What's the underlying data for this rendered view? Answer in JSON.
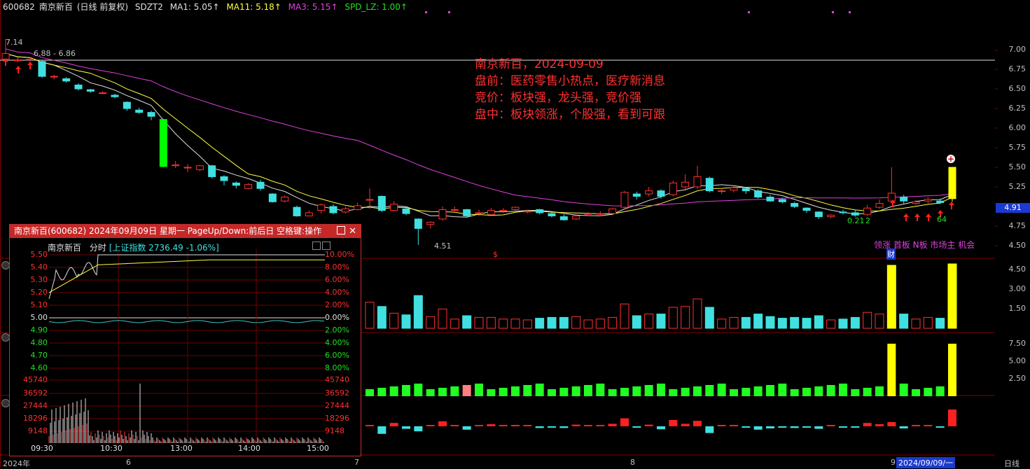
{
  "header": {
    "code": "600682",
    "name": "南京新百",
    "period": "(日线 前复权)",
    "indicator": "SDZT2",
    "ma1": "MA1: 5.05↑",
    "ma11": "MA11: 5.18↑",
    "ma3": "MA3: 5.15↑",
    "spd": "SPD_LZ: 1.00↑"
  },
  "annotation": {
    "line1": "南京新百，2024-09-09",
    "line2": "盘前：医药零售小热点，医疗新消息",
    "line3": "竞价：板块强，龙头强，竞价强",
    "line4": "盘中：板块领涨，个股强，看到可跟"
  },
  "price_axis": [
    "7.00",
    "6.75",
    "6.50",
    "6.25",
    "6.00",
    "5.75",
    "5.50",
    "5.25",
    "4.75",
    "4.50"
  ],
  "current_price": "4.91",
  "chart_labels": {
    "high": "7.14",
    "range": "6.88 - 6.86",
    "low": "4.51",
    "vol_label": "0.21",
    "vol_label2": "2",
    "count": "64",
    "dollar": "$",
    "cai": "财",
    "tags": "领涨 首板 N板 市场主 机会"
  },
  "vol_axis": [
    "4.50",
    "3.00",
    "1.50"
  ],
  "ind2_axis": [
    "7.50",
    "5.00",
    "2.50"
  ],
  "date_axis": {
    "year": "2024年",
    "m6": "6",
    "m7": "7",
    "m8": "8",
    "m9": "9",
    "cursor_date": "2024/09/09/一",
    "period_btn": "日线"
  },
  "popup": {
    "title": "南京新百(600682) 2024年09月09日 星期一 PageUp/Down:前后日 空格键:操作",
    "sub_name": "南京新百",
    "sub_mode": "分时",
    "sub_index": "[上证指数 2736.49 -1.06%]",
    "left_axis": [
      "5.50",
      "5.40",
      "5.30",
      "5.20",
      "5.10",
      "5.00",
      "4.90",
      "4.80",
      "4.70",
      "4.60",
      "45740",
      "36592",
      "27444",
      "18296",
      "9148"
    ],
    "right_axis": [
      "10.00%",
      "8.00%",
      "6.00%",
      "4.00%",
      "2.00%",
      "0.00%",
      "2.00%",
      "4.00%",
      "6.00%",
      "8.00%",
      "45740",
      "36592",
      "27444",
      "18296",
      "9148"
    ],
    "time_axis": [
      "09:30",
      "10:30",
      "13:00",
      "14:00",
      "15:00"
    ]
  },
  "chart_data": {
    "type": "candlestick",
    "candles": [
      [
        6.88,
        6.95,
        6.86,
        7.14
      ],
      [
        6.86,
        6.87,
        6.84,
        6.9
      ],
      [
        6.87,
        6.88,
        6.85,
        6.9
      ],
      [
        6.85,
        6.66,
        6.64,
        6.86
      ],
      [
        6.66,
        6.66,
        6.62,
        6.68
      ],
      [
        6.63,
        6.6,
        6.58,
        6.65
      ],
      [
        6.55,
        6.5,
        6.48,
        6.57
      ],
      [
        6.49,
        6.47,
        6.45,
        6.5
      ],
      [
        6.45,
        6.45,
        6.43,
        6.47
      ],
      [
        6.42,
        6.4,
        6.38,
        6.44
      ],
      [
        6.33,
        6.25,
        6.22,
        6.34
      ],
      [
        6.23,
        6.2,
        6.18,
        6.26
      ],
      [
        6.2,
        6.15,
        6.1,
        6.22
      ],
      [
        6.11,
        5.51,
        5.5,
        6.12
      ],
      [
        5.52,
        5.53,
        5.49,
        5.58
      ],
      [
        5.5,
        5.5,
        5.44,
        5.54
      ],
      [
        5.47,
        5.52,
        5.45,
        5.53
      ],
      [
        5.52,
        5.38,
        5.36,
        5.53
      ],
      [
        5.38,
        5.33,
        5.27,
        5.4
      ],
      [
        5.3,
        5.27,
        5.23,
        5.32
      ],
      [
        5.23,
        5.28,
        5.22,
        5.3
      ],
      [
        5.31,
        5.23,
        5.2,
        5.34
      ],
      [
        5.16,
        5.06,
        5.05,
        5.17
      ],
      [
        5.07,
        5.12,
        5.05,
        5.14
      ],
      [
        4.99,
        4.88,
        4.87,
        5.01
      ],
      [
        4.88,
        4.92,
        4.88,
        4.95
      ],
      [
        4.95,
        5.02,
        4.91,
        5.04
      ],
      [
        5.0,
        4.92,
        4.9,
        5.03
      ],
      [
        4.93,
        4.97,
        4.91,
        5.0
      ],
      [
        4.96,
        5.01,
        4.95,
        5.05
      ],
      [
        5.08,
        5.09,
        4.97,
        5.23
      ],
      [
        5.13,
        4.95,
        4.93,
        5.14
      ],
      [
        4.95,
        5.03,
        4.94,
        5.07
      ],
      [
        4.97,
        4.91,
        4.89,
        5.0
      ],
      [
        4.84,
        4.72,
        4.51,
        4.85
      ],
      [
        4.77,
        4.8,
        4.72,
        4.81
      ],
      [
        4.84,
        4.96,
        4.82,
        5.0
      ],
      [
        4.96,
        4.96,
        4.94,
        5.0
      ],
      [
        4.96,
        4.88,
        4.87,
        4.97
      ],
      [
        4.91,
        4.92,
        4.88,
        4.96
      ],
      [
        4.9,
        4.95,
        4.9,
        4.98
      ],
      [
        4.94,
        4.95,
        4.92,
        4.98
      ],
      [
        4.96,
        4.99,
        4.94,
        5.0
      ],
      [
        4.93,
        4.94,
        4.91,
        4.96
      ],
      [
        4.96,
        4.92,
        4.9,
        4.97
      ],
      [
        4.91,
        4.88,
        4.86,
        4.94
      ],
      [
        4.87,
        4.83,
        4.82,
        4.9
      ],
      [
        4.84,
        4.88,
        4.83,
        4.92
      ],
      [
        4.91,
        4.91,
        4.88,
        4.93
      ],
      [
        4.91,
        4.91,
        4.88,
        4.94
      ],
      [
        4.91,
        4.97,
        4.9,
        4.98
      ],
      [
        4.99,
        5.18,
        4.96,
        5.2
      ],
      [
        5.16,
        5.13,
        5.09,
        5.19
      ],
      [
        5.16,
        5.2,
        5.13,
        5.25
      ],
      [
        5.2,
        5.13,
        5.1,
        5.22
      ],
      [
        5.15,
        5.3,
        5.13,
        5.33
      ],
      [
        5.25,
        5.31,
        5.2,
        5.41
      ],
      [
        5.25,
        5.38,
        5.22,
        5.52
      ],
      [
        5.36,
        5.2,
        5.18,
        5.38
      ],
      [
        5.2,
        5.2,
        5.16,
        5.22
      ],
      [
        5.21,
        5.24,
        5.18,
        5.26
      ],
      [
        5.23,
        5.2,
        5.16,
        5.24
      ],
      [
        5.2,
        5.12,
        5.1,
        5.22
      ],
      [
        5.12,
        5.07,
        5.06,
        5.15
      ],
      [
        5.09,
        5.06,
        5.04,
        5.11
      ],
      [
        5.04,
        5.0,
        4.98,
        5.06
      ],
      [
        4.98,
        4.95,
        4.92,
        4.99
      ],
      [
        4.93,
        4.87,
        4.84,
        4.94
      ],
      [
        4.87,
        4.89,
        4.85,
        4.9
      ],
      [
        4.93,
        4.92,
        4.9,
        4.96
      ],
      [
        4.92,
        4.89,
        4.87,
        4.95
      ],
      [
        4.9,
        4.98,
        4.88,
        5.02
      ],
      [
        4.99,
        5.04,
        4.97,
        5.09
      ],
      [
        5.07,
        5.17,
        5.05,
        5.5
      ],
      [
        5.12,
        5.07,
        5.03,
        5.15
      ],
      [
        5.04,
        5.06,
        5.02,
        5.08
      ],
      [
        5.07,
        5.09,
        5.04,
        5.12
      ],
      [
        5.07,
        5.05,
        5.03,
        5.1
      ],
      [
        5.1,
        5.5,
        5.06,
        5.5
      ]
    ]
  }
}
